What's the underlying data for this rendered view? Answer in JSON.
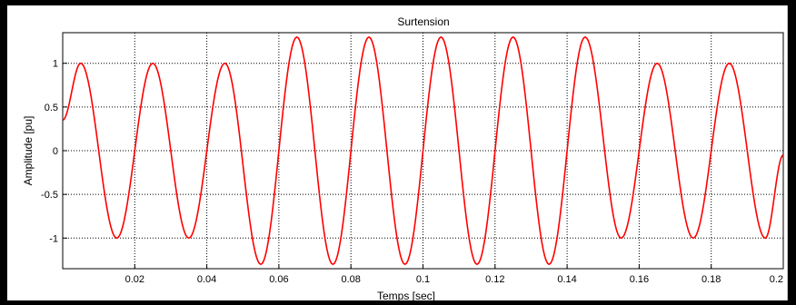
{
  "chart_data": {
    "type": "line",
    "title": "Surtension",
    "xlabel": "Temps [sec]",
    "ylabel": "Amplitude [pu]",
    "xlim": [
      0,
      0.2
    ],
    "ylim": [
      -1.35,
      1.35
    ],
    "grid": true,
    "xticks": [
      0.02,
      0.04,
      0.06,
      0.08,
      0.1,
      0.12,
      0.14,
      0.16,
      0.18,
      0.2
    ],
    "xtick_labels": [
      "0.02",
      "0.04",
      "0.06",
      "0.08",
      "0.1",
      "0.12",
      "0.14",
      "0.16",
      "0.18",
      "0.2"
    ],
    "yticks": [
      1,
      0.5,
      0,
      -0.5,
      -1
    ],
    "ytick_labels": [
      "1",
      "0.5",
      "0",
      "-0.5",
      "-1"
    ],
    "series": [
      {
        "color": "#ff0000",
        "x": [
          0,
          0.005,
          0.015,
          0.025,
          0.035,
          0.045,
          0.055,
          0.065,
          0.075,
          0.085,
          0.095,
          0.105,
          0.115,
          0.125,
          0.135,
          0.145,
          0.155,
          0.165,
          0.175,
          0.185,
          0.195,
          0.2
        ],
        "y": [
          0.35,
          1.0,
          -1.0,
          1.0,
          -1.0,
          1.0,
          -1.3,
          1.3,
          -1.3,
          1.3,
          -1.3,
          1.3,
          -1.3,
          1.3,
          -1.3,
          1.3,
          -1.0,
          1.0,
          -1.0,
          1.0,
          -1.0,
          -0.05
        ]
      }
    ]
  }
}
